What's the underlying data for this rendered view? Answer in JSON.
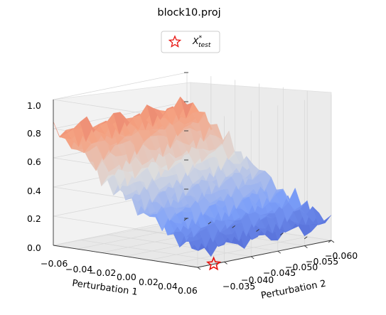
{
  "chart_data": {
    "type": "surface",
    "title": "block10.proj",
    "xlabel": "Perturbation 1",
    "ylabel": "Perturbation 2",
    "zlabel": "",
    "x_ticks": [
      "−0.06",
      "−0.04",
      "−0.02",
      "0.00",
      "0.02",
      "0.04",
      "0.06"
    ],
    "y_ticks": [
      "−0.035",
      "−0.040",
      "−0.045",
      "−0.050",
      "−0.055",
      "−0.060"
    ],
    "z_ticks": [
      "0.0",
      "0.2",
      "0.4",
      "0.6",
      "0.8",
      "1.0"
    ],
    "xlim": [
      -0.06,
      0.06
    ],
    "ylim": [
      -0.06,
      -0.035
    ],
    "zlim": [
      0.0,
      1.0
    ],
    "colormap": "coolwarm",
    "legend": {
      "position": "top-center",
      "entries": [
        {
          "marker": "star-outline",
          "color": "#e8130f",
          "label_main": "X",
          "label_sup": "*",
          "label_sub": "test"
        }
      ]
    },
    "surface_profile": {
      "x_perturbation_1": [
        -0.06,
        -0.04,
        -0.02,
        0.0,
        0.02,
        0.04,
        0.06
      ],
      "z_mean_value": [
        0.78,
        0.7,
        0.52,
        0.4,
        0.3,
        0.2,
        0.12
      ],
      "noise_amplitude": 0.08
    },
    "points": [
      {
        "name": "X*test",
        "x": 0.06,
        "y": -0.038,
        "z": 0.0
      }
    ]
  }
}
